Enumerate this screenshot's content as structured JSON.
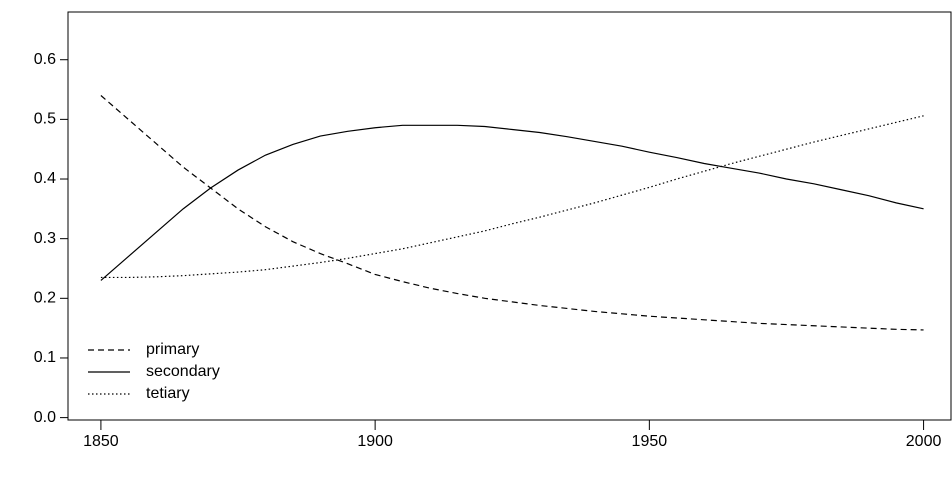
{
  "chart_data": {
    "type": "line",
    "x": [
      1850,
      1855,
      1860,
      1865,
      1870,
      1875,
      1880,
      1885,
      1890,
      1895,
      1900,
      1905,
      1910,
      1915,
      1920,
      1925,
      1930,
      1935,
      1940,
      1945,
      1950,
      1955,
      1960,
      1965,
      1970,
      1975,
      1980,
      1985,
      1990,
      1995,
      2000
    ],
    "series": [
      {
        "name": "primary",
        "color": "#000000",
        "dash": "dashed",
        "values": [
          0.54,
          0.5,
          0.46,
          0.42,
          0.385,
          0.35,
          0.32,
          0.295,
          0.275,
          0.258,
          0.24,
          0.228,
          0.217,
          0.208,
          0.2,
          0.194,
          0.188,
          0.183,
          0.178,
          0.174,
          0.17,
          0.167,
          0.164,
          0.161,
          0.158,
          0.156,
          0.154,
          0.152,
          0.15,
          0.148,
          0.147
        ]
      },
      {
        "name": "secondary",
        "color": "#000000",
        "dash": "solid",
        "values": [
          0.23,
          0.27,
          0.31,
          0.35,
          0.385,
          0.415,
          0.44,
          0.458,
          0.472,
          0.48,
          0.486,
          0.49,
          0.49,
          0.49,
          0.488,
          0.483,
          0.478,
          0.471,
          0.463,
          0.455,
          0.445,
          0.436,
          0.426,
          0.418,
          0.41,
          0.4,
          0.392,
          0.382,
          0.372,
          0.36,
          0.35
        ]
      },
      {
        "name": "tetiary",
        "color": "#000000",
        "dash": "dotted",
        "values": [
          0.235,
          0.235,
          0.236,
          0.238,
          0.241,
          0.244,
          0.248,
          0.254,
          0.26,
          0.267,
          0.275,
          0.283,
          0.293,
          0.303,
          0.313,
          0.325,
          0.336,
          0.348,
          0.36,
          0.373,
          0.386,
          0.4,
          0.413,
          0.426,
          0.438,
          0.45,
          0.462,
          0.473,
          0.484,
          0.495,
          0.506
        ]
      }
    ],
    "xlim": [
      1844,
      2005
    ],
    "xticks": [
      1850,
      1900,
      1950,
      2000
    ],
    "ylim": [
      -0.004,
      0.68
    ],
    "yticks": [
      {
        "value": 0,
        "label": "0.0"
      },
      0.1,
      0.2,
      0.3,
      0.4,
      0.5,
      0.6
    ],
    "legend": "bottom-left"
  }
}
